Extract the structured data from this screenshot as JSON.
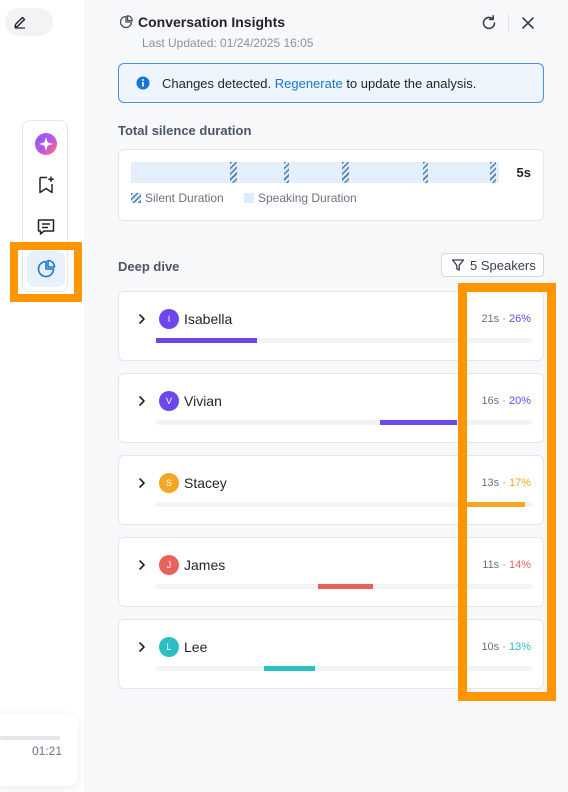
{
  "sidebar": {
    "icons": [
      "edit-icon",
      "ai-sparkle-icon",
      "bookmark-add-icon",
      "comment-icon",
      "pie-chart-icon"
    ],
    "player_time": "01:21"
  },
  "panel": {
    "title": "Conversation Insights",
    "last_updated": "Last Updated: 01/24/2025 16:05",
    "notice": {
      "prefix": "Changes detected. ",
      "link": "Regenerate",
      "suffix": " to update the analysis."
    },
    "silence": {
      "heading": "Total silence duration",
      "total": "5s",
      "legend_silent": "Silent Duration",
      "legend_speaking": "Speaking Duration"
    },
    "deep_dive": {
      "heading": "Deep dive",
      "filter_label": "5 Speakers",
      "speakers": [
        {
          "initial": "I",
          "name": "Isabella",
          "duration": "21s",
          "percent": "26%",
          "color": "#6c47f0"
        },
        {
          "initial": "V",
          "name": "Vivian",
          "duration": "16s",
          "percent": "20%",
          "color": "#6c47f0"
        },
        {
          "initial": "S",
          "name": "Stacey",
          "duration": "13s",
          "percent": "17%",
          "color": "#f5a623"
        },
        {
          "initial": "J",
          "name": "James",
          "duration": "11s",
          "percent": "14%",
          "color": "#e8625a"
        },
        {
          "initial": "L",
          "name": "Lee",
          "duration": "10s",
          "percent": "13%",
          "color": "#2bbfc4"
        }
      ]
    }
  },
  "colors": {
    "accent": "#1677d2",
    "highlight": "#ff9500"
  }
}
